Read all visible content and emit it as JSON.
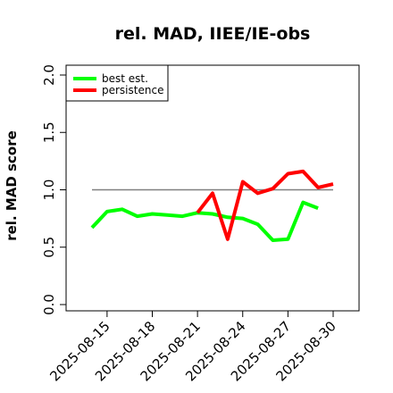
{
  "chart_data": {
    "type": "line",
    "title": "rel. MAD, IIEE/IE-obs",
    "xlabel": "",
    "ylabel": "rel. MAD score",
    "ylim": [
      0,
      2
    ],
    "yticks": [
      "0.0",
      "0.5",
      "1.0",
      "1.5",
      "2.0"
    ],
    "xticks": [
      "2025-08-15",
      "2025-08-18",
      "2025-08-21",
      "2025-08-24",
      "2025-08-27",
      "2025-08-30"
    ],
    "x": [
      "2025-08-14",
      "2025-08-15",
      "2025-08-16",
      "2025-08-17",
      "2025-08-18",
      "2025-08-19",
      "2025-08-20",
      "2025-08-21",
      "2025-08-22",
      "2025-08-23",
      "2025-08-24",
      "2025-08-25",
      "2025-08-26",
      "2025-08-27",
      "2025-08-28",
      "2025-08-29",
      "2025-08-30"
    ],
    "reference_line": {
      "y": 1.0,
      "from": "2025-08-14",
      "to": "2025-08-30",
      "color": "#808080"
    },
    "series": [
      {
        "name": "best est.",
        "color": "#00ff00",
        "values": [
          0.67,
          0.81,
          0.83,
          0.77,
          0.79,
          0.78,
          0.77,
          0.8,
          0.79,
          0.76,
          0.75,
          0.7,
          0.56,
          0.57,
          0.89,
          0.84,
          null
        ]
      },
      {
        "name": "persistence",
        "color": "#ff0000",
        "values": [
          null,
          null,
          null,
          null,
          null,
          null,
          null,
          0.8,
          0.97,
          0.57,
          1.07,
          0.97,
          1.01,
          1.14,
          1.16,
          1.02,
          1.05
        ]
      }
    ],
    "legend_position": "top-left",
    "grid": false
  }
}
